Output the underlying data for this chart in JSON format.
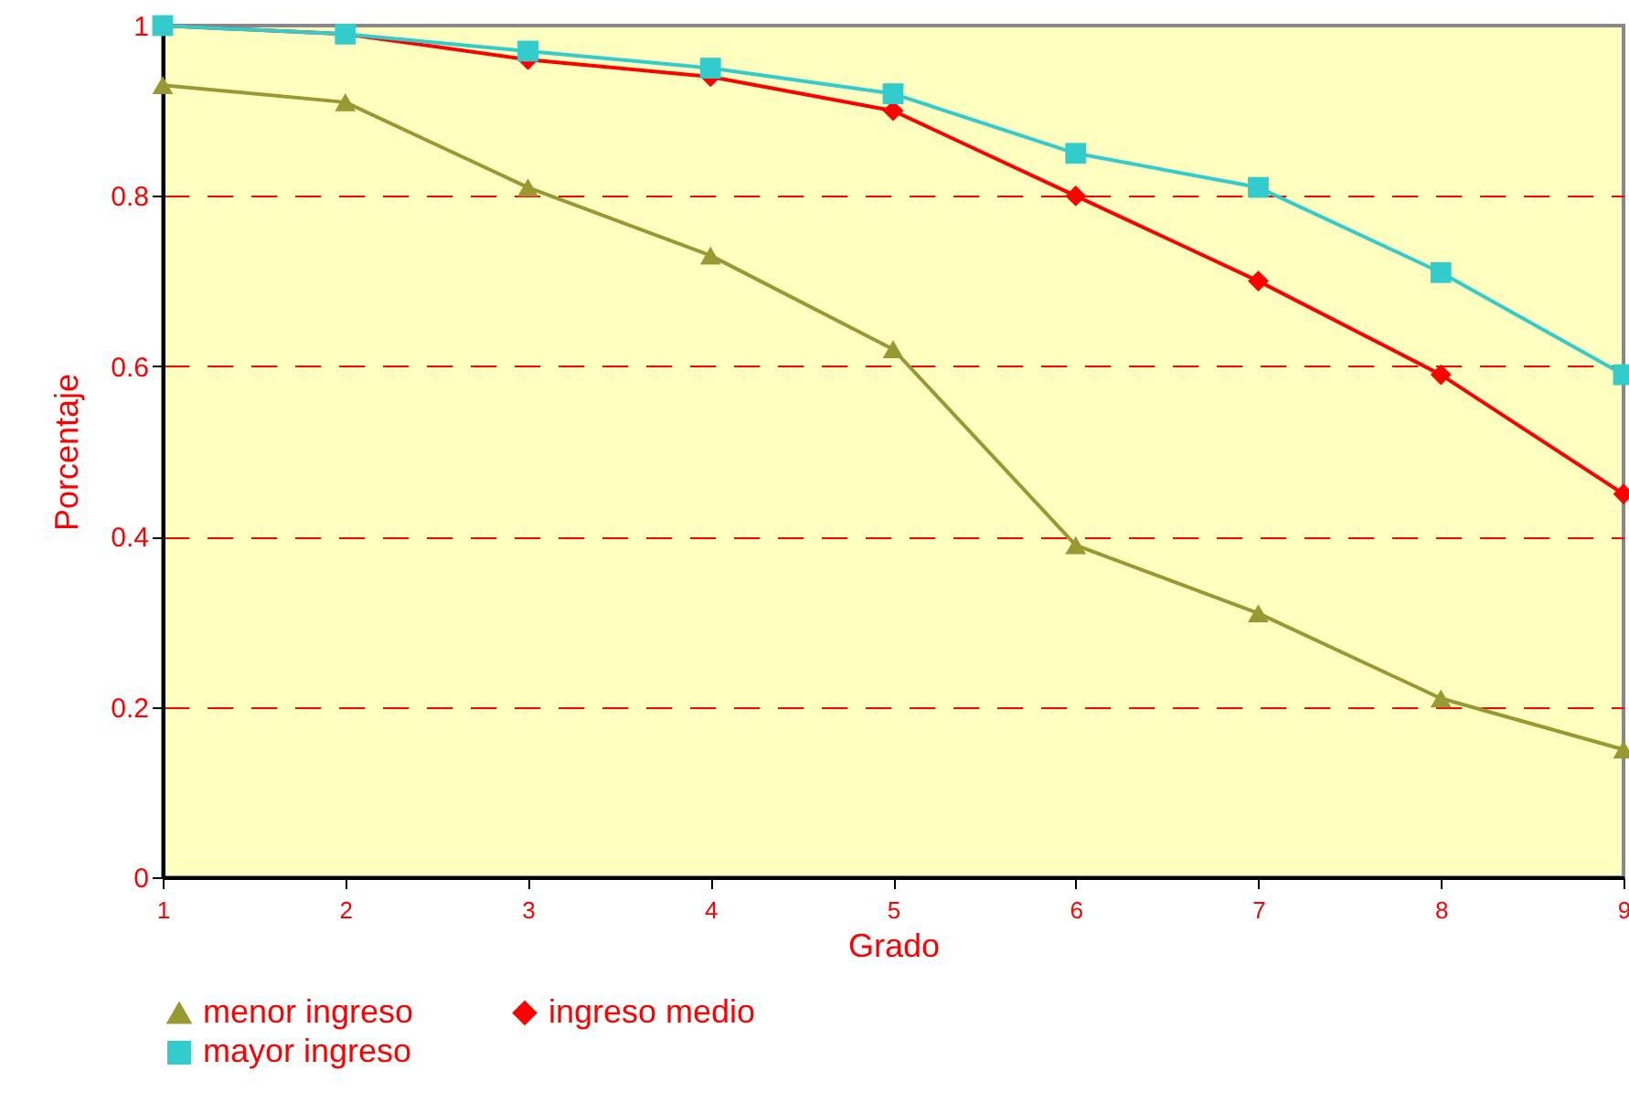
{
  "chart_data": {
    "type": "line",
    "xlabel": "Grado",
    "ylabel": "Porcentaje",
    "x": [
      1,
      2,
      3,
      4,
      5,
      6,
      7,
      8,
      9
    ],
    "xlim": [
      1,
      9
    ],
    "xticks": [
      1,
      2,
      3,
      4,
      5,
      6,
      7,
      8,
      9
    ],
    "ylim": [
      0,
      1
    ],
    "yticks": [
      0,
      0.2,
      0.4,
      0.6,
      0.8,
      1
    ],
    "grid": "y",
    "legend": "bottom",
    "line_style": "solid",
    "series": [
      {
        "name": "menor ingreso",
        "color": "#999933",
        "marker": "triangle",
        "values": [
          0.93,
          0.91,
          0.81,
          0.73,
          0.62,
          0.39,
          0.31,
          0.21,
          0.15
        ]
      },
      {
        "name": "ingreso medio",
        "color": "#ff0000",
        "marker": "diamond",
        "values": [
          1.0,
          0.99,
          0.96,
          0.94,
          0.9,
          0.8,
          0.7,
          0.59,
          0.45
        ]
      },
      {
        "name": "mayor ingreso",
        "color": "#33cccc",
        "marker": "square",
        "values": [
          1.0,
          0.99,
          0.97,
          0.95,
          0.92,
          0.85,
          0.81,
          0.71,
          0.59
        ]
      }
    ]
  }
}
